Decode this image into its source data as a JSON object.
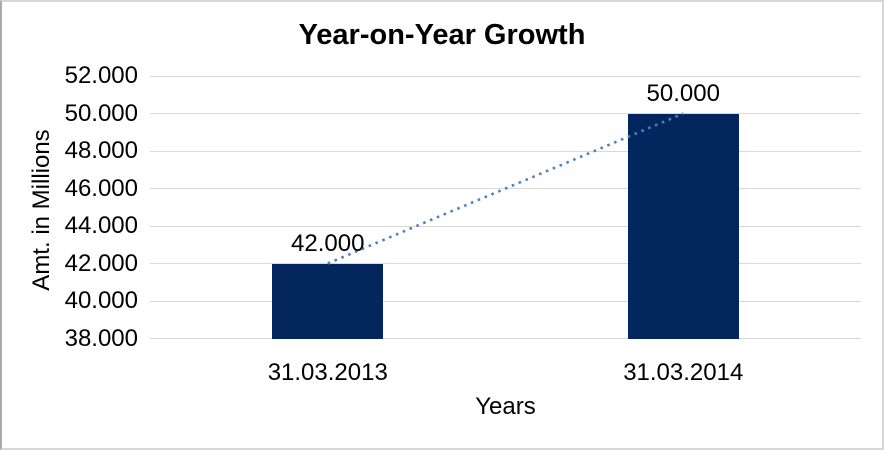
{
  "chart_data": {
    "type": "bar",
    "title": "Year-on-Year Growth",
    "xlabel": "Years",
    "ylabel": "Amt. in Millions",
    "categories": [
      "31.03.2013",
      "31.03.2014"
    ],
    "values": [
      42000,
      50000
    ],
    "data_labels": [
      "42.000",
      "50.000"
    ],
    "ylim": [
      38000,
      52000
    ],
    "ytick_step": 2000,
    "ytick_labels": [
      "38.000",
      "40.000",
      "42.000",
      "44.000",
      "46.000",
      "48.000",
      "50.000",
      "52.000"
    ],
    "grid": true,
    "legend": false,
    "trendline": {
      "style": "dotted",
      "from_category_index": 0,
      "to_category_index": 1
    },
    "colors": {
      "bar": "#04265E",
      "trendline": "#4E81BD",
      "gridline": "#D9D9D9",
      "text": "#000000",
      "frame_border": "#D7D7D7",
      "background": "#FFFFFF"
    }
  }
}
